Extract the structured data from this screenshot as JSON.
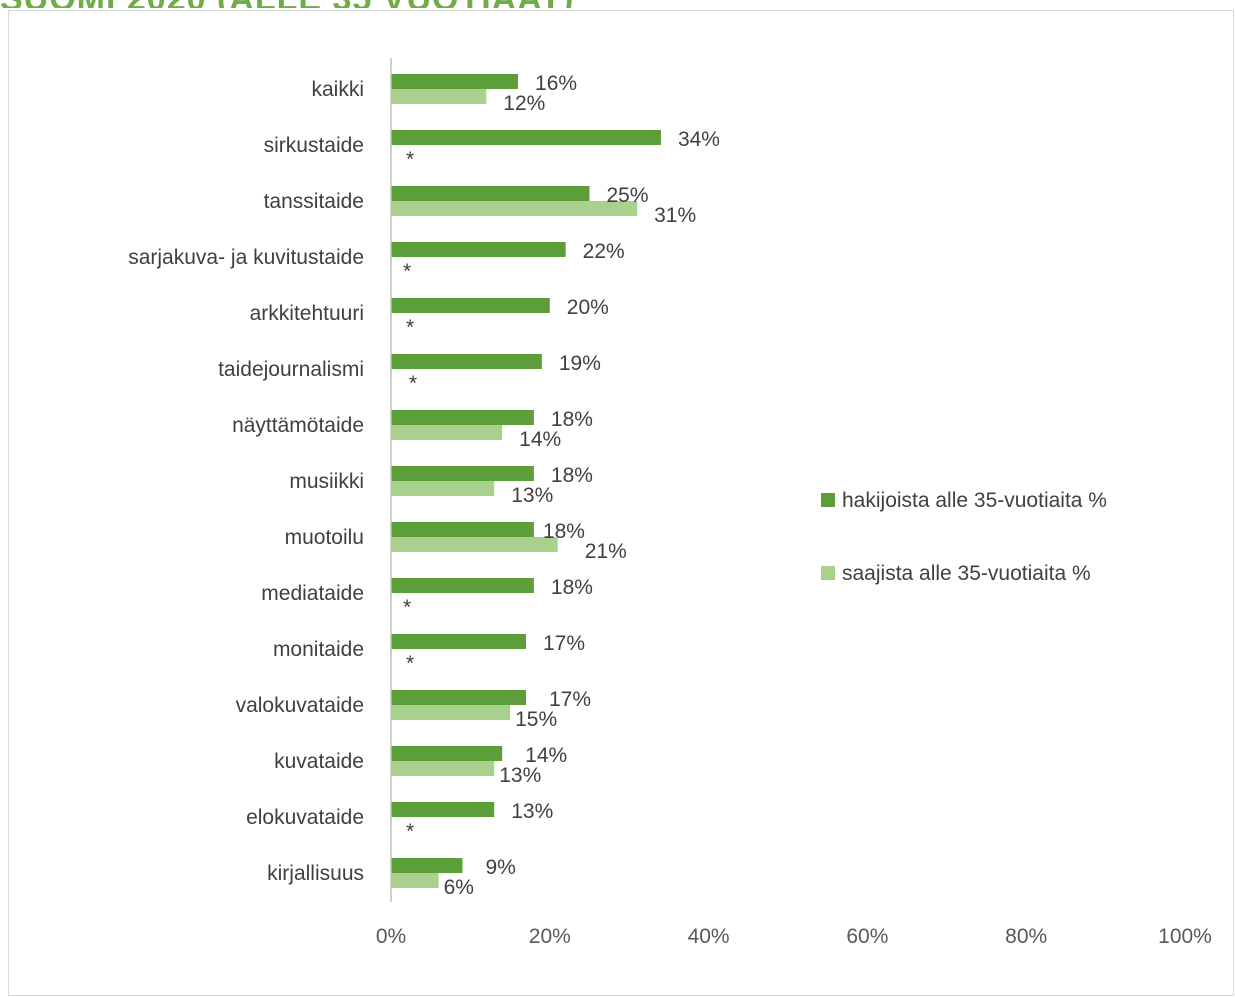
{
  "chart_data": {
    "type": "bar",
    "orientation": "horizontal",
    "title": "",
    "xlabel": "",
    "ylabel": "",
    "xlim": [
      0,
      100
    ],
    "x_ticks": [
      "0%",
      "20%",
      "40%",
      "60%",
      "80%",
      "100%"
    ],
    "grid": false,
    "legend_position": "right",
    "categories": [
      "kaikki",
      "sirkustaide",
      "tanssitaide",
      "sarjakuva- ja kuvitustaide",
      "arkkitehtuuri",
      "taidejournalismi",
      "näyttämötaide",
      "musiikki",
      "muotoilu",
      "mediataide",
      "monitaide",
      "valokuvataide",
      "kuvataide",
      "elokuvataide",
      "kirjallisuus"
    ],
    "series": [
      {
        "name": "hakijoista alle 35-vuotiaita %",
        "color": "#5b9e3a",
        "values": [
          16,
          34,
          25,
          22,
          20,
          19,
          18,
          18,
          18,
          18,
          17,
          17,
          14,
          13,
          9
        ],
        "labels": [
          "16%",
          "34%",
          "25%",
          "22%",
          "20%",
          "19%",
          "18%",
          "18%",
          "18%",
          "18%",
          "17%",
          "17%",
          "14%",
          "13%",
          "9%"
        ]
      },
      {
        "name": "saajista alle 35-vuotiaita %",
        "color": "#a9d18e",
        "values": [
          12,
          null,
          31,
          null,
          null,
          null,
          14,
          13,
          21,
          null,
          null,
          15,
          13,
          null,
          6
        ],
        "labels": [
          "12%",
          "*",
          "31%",
          "*",
          "*",
          "*",
          "14%",
          "13%",
          "21%",
          "*",
          "*",
          "15%",
          "13%",
          "*",
          "6%"
        ]
      }
    ]
  }
}
